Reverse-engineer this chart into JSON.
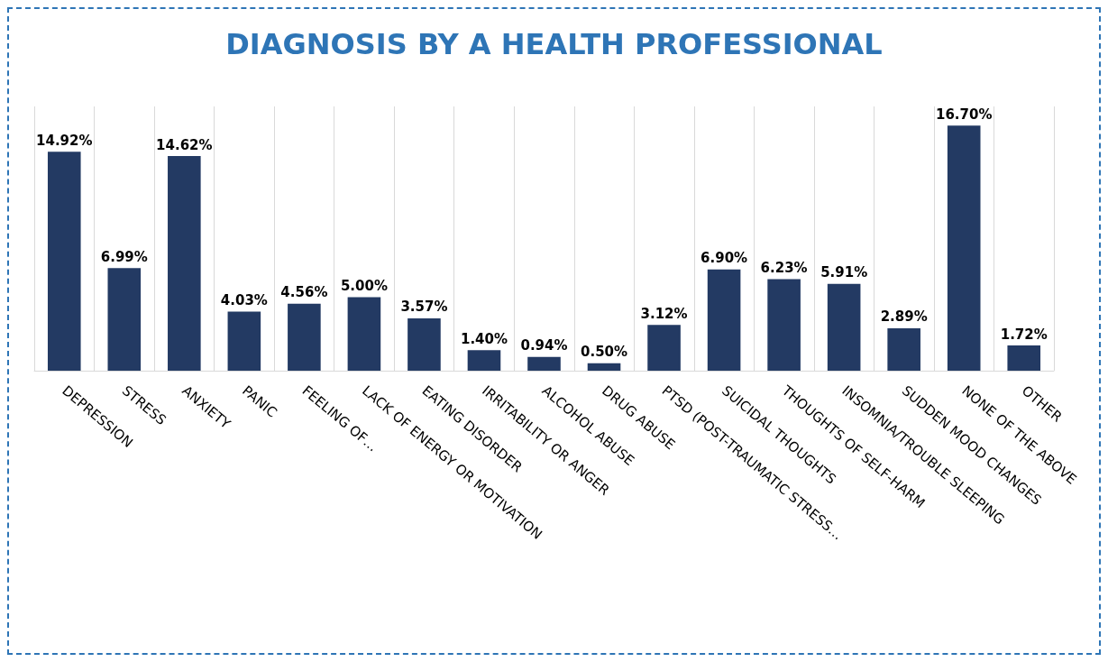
{
  "chart_data": {
    "type": "bar",
    "title": "DIAGNOSIS BY A HEALTH PROFESSIONAL",
    "categories": [
      "DEPRESSION",
      "STRESS",
      "ANXIETY",
      "PANIC",
      "FEELING OF…",
      "LACK OF ENERGY OR MOTIVATION",
      "EATING DISORDER",
      "IRRITABILITY OR ANGER",
      "ALCOHOL ABUSE",
      "DRUG ABUSE",
      "PTSD (POST-TRAUMATIC STRESS…",
      "SUICIDAL THOUGHTS",
      "THOUGHTS OF SELF-HARM",
      "INSOMNIA/TROUBLE SLEEPING",
      "SUDDEN MOOD CHANGES",
      "NONE OF THE ABOVE",
      "OTHER"
    ],
    "values": [
      14.92,
      6.99,
      14.62,
      4.03,
      4.56,
      5.0,
      3.57,
      1.4,
      0.94,
      0.5,
      3.12,
      6.9,
      6.23,
      5.91,
      2.89,
      16.7,
      1.72
    ],
    "value_labels": [
      "14.92%",
      "6.99%",
      "14.62%",
      "4.03%",
      "4.56%",
      "5.00%",
      "3.57%",
      "1.40%",
      "0.94%",
      "0.50%",
      "3.12%",
      "6.90%",
      "6.23%",
      "5.91%",
      "2.89%",
      "16.70%",
      "1.72%"
    ],
    "color": "#233a63",
    "grid": "x"
  }
}
